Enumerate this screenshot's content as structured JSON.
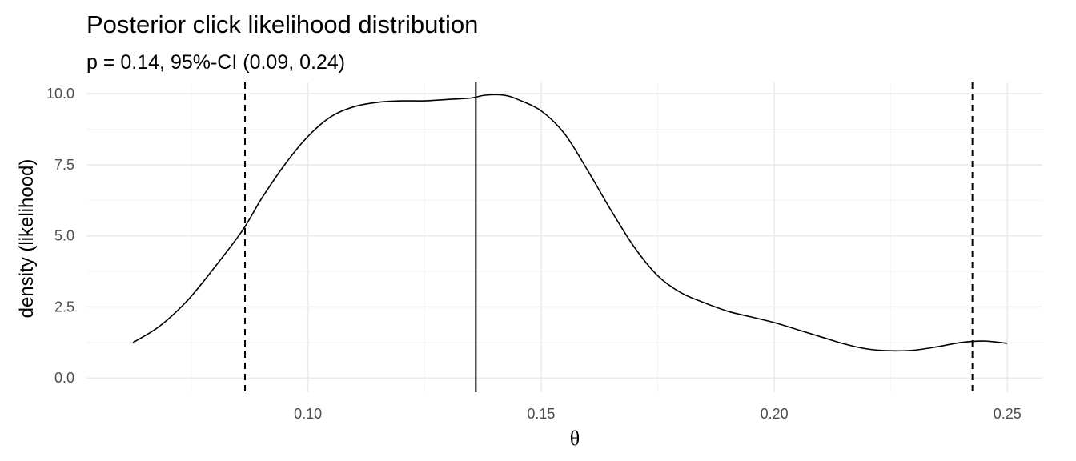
{
  "chart_data": {
    "type": "line",
    "title": "Posterior click likelihood distribution",
    "subtitle": "p = 0.14, 95%-CI (0.09, 0.24)",
    "xlabel": "θ",
    "ylabel": "density (likelihood)",
    "xlim": [
      0.0525,
      0.2575
    ],
    "ylim": [
      -0.5,
      10.4
    ],
    "x_ticks": [
      {
        "value": 0.1,
        "label": "0.10"
      },
      {
        "value": 0.15,
        "label": "0.15"
      },
      {
        "value": 0.2,
        "label": "0.20"
      },
      {
        "value": 0.25,
        "label": "0.25"
      }
    ],
    "y_ticks": [
      {
        "value": 0.0,
        "label": "0.0"
      },
      {
        "value": 2.5,
        "label": "2.5"
      },
      {
        "value": 5.0,
        "label": "5.0"
      },
      {
        "value": 7.5,
        "label": "7.5"
      },
      {
        "value": 10.0,
        "label": "10.0"
      }
    ],
    "grid": true,
    "series": [
      {
        "x": [
          0.0625,
          0.068,
          0.074,
          0.08,
          0.086,
          0.09,
          0.095,
          0.1,
          0.105,
          0.11,
          0.115,
          0.12,
          0.125,
          0.13,
          0.135,
          0.138,
          0.142,
          0.145,
          0.15,
          0.155,
          0.16,
          0.165,
          0.17,
          0.175,
          0.18,
          0.185,
          0.19,
          0.195,
          0.2,
          0.205,
          0.21,
          0.215,
          0.22,
          0.225,
          0.23,
          0.235,
          0.24,
          0.245,
          0.25
        ],
        "y": [
          1.25,
          1.8,
          2.7,
          3.9,
          5.2,
          6.3,
          7.5,
          8.5,
          9.2,
          9.55,
          9.7,
          9.75,
          9.75,
          9.8,
          9.85,
          9.95,
          9.95,
          9.8,
          9.4,
          8.6,
          7.3,
          5.9,
          4.6,
          3.6,
          3.0,
          2.65,
          2.35,
          2.15,
          1.95,
          1.7,
          1.45,
          1.2,
          1.02,
          0.96,
          0.98,
          1.1,
          1.25,
          1.3,
          1.22
        ]
      }
    ],
    "vlines": [
      {
        "x": 0.136,
        "style": "solid"
      },
      {
        "x": 0.0865,
        "style": "dashed"
      },
      {
        "x": 0.2425,
        "style": "dashed"
      }
    ]
  }
}
